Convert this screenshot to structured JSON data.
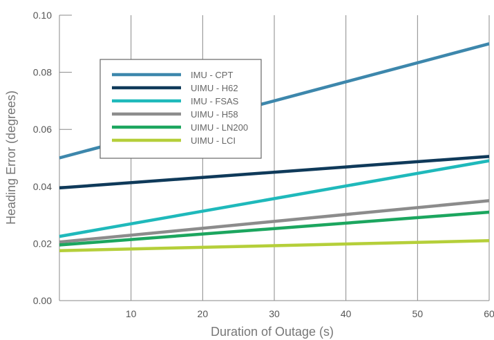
{
  "chart_data": {
    "type": "line",
    "title": "",
    "xlabel": "Duration of Outage (s)",
    "ylabel": "Heading Error (degrees)",
    "xlim": [
      0,
      60
    ],
    "ylim": [
      0.0,
      0.1
    ],
    "xticks": [
      10,
      20,
      30,
      40,
      50,
      60
    ],
    "xtick_labels": [
      "10",
      "20",
      "30",
      "40",
      "50",
      "60"
    ],
    "yticks": [
      0.0,
      0.02,
      0.04,
      0.06,
      0.08,
      0.1
    ],
    "ytick_labels": [
      "0.00",
      "0.02",
      "0.04",
      "0.06",
      "0.08",
      "0.10"
    ],
    "grid": "vertical",
    "legend_position": "top-left",
    "series": [
      {
        "name": "IMU - CPT",
        "color": "#3d87ac",
        "x": [
          0,
          60
        ],
        "y": [
          0.05,
          0.09
        ]
      },
      {
        "name": "UIMU - H62",
        "color": "#0f3a5a",
        "x": [
          0,
          60
        ],
        "y": [
          0.0395,
          0.0505
        ]
      },
      {
        "name": "IMU - FSAS",
        "color": "#1fb9bb",
        "x": [
          0,
          60
        ],
        "y": [
          0.0225,
          0.049
        ]
      },
      {
        "name": "UIMU - H58",
        "color": "#8c8c8c",
        "x": [
          0,
          60
        ],
        "y": [
          0.0205,
          0.035
        ]
      },
      {
        "name": "UIMU - LN200",
        "color": "#1ca65f",
        "x": [
          0,
          60
        ],
        "y": [
          0.0195,
          0.031
        ]
      },
      {
        "name": "UIMU - LCI",
        "color": "#b5cf3a",
        "x": [
          0,
          60
        ],
        "y": [
          0.0175,
          0.021
        ]
      }
    ]
  }
}
